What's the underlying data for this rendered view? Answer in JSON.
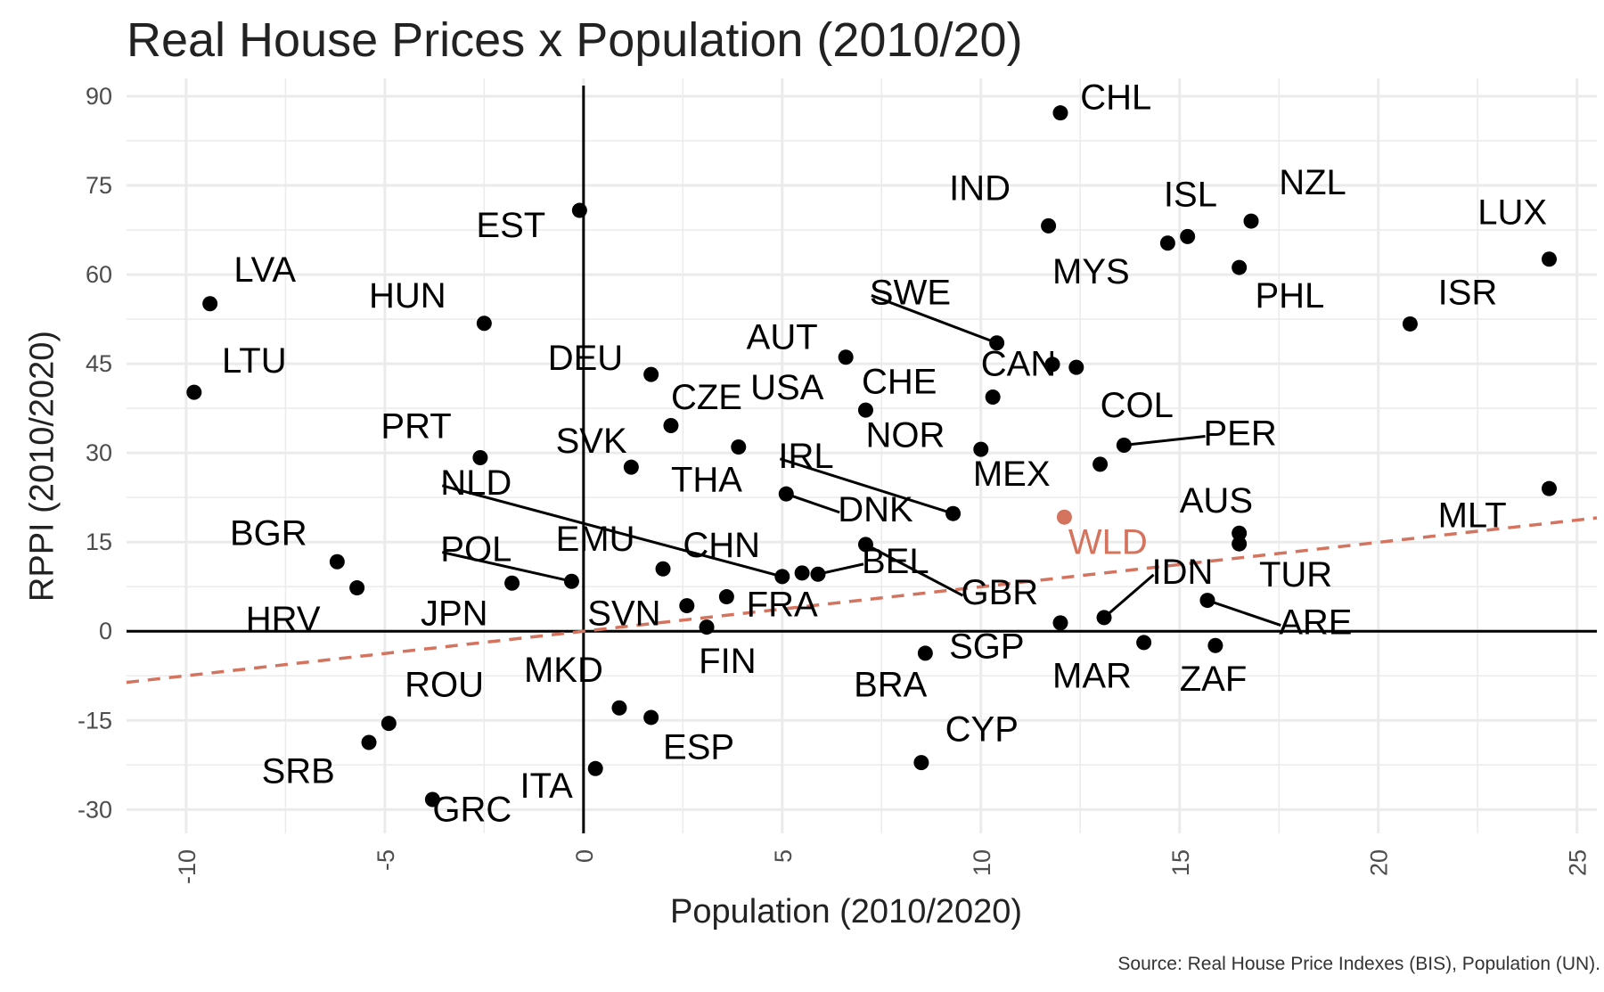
{
  "chart_data": {
    "type": "scatter",
    "title": "Real House Prices x Population (2010/20)",
    "xlabel": "Population (2010/2020)",
    "ylabel": "RPPI (2010/2020)",
    "source": "Source: Real House Price Indexes (BIS), Population (UN).",
    "xlim": [
      -11.5,
      25.5
    ],
    "ylim": [
      -34,
      93
    ],
    "x_ticks": [
      -10,
      -5,
      0,
      5,
      10,
      15,
      20,
      25
    ],
    "y_ticks": [
      -30,
      -15,
      0,
      15,
      30,
      45,
      60,
      75,
      90
    ],
    "x_tick_labels": [
      "-10",
      "-5",
      "0",
      "5",
      "10",
      "15",
      "20",
      "25"
    ],
    "y_tick_labels": [
      "-30",
      "-15",
      "0",
      "15",
      "30",
      "45",
      "60",
      "75",
      "90"
    ],
    "grid": true,
    "reference_lines": {
      "x": 0,
      "y": 0
    },
    "trend_line": {
      "style": "dashed",
      "color": "#d4735e",
      "slope": 0.748,
      "intercept": 0.0
    },
    "colors": {
      "points": "#000000",
      "highlight": "#d4735e",
      "grid": "#ebebeb"
    },
    "points": [
      {
        "label": "CHL",
        "x": 12.0,
        "y": 87.2
      },
      {
        "label": "IND",
        "x": 11.7,
        "y": 68.2
      },
      {
        "label": "ISL",
        "x": 15.2,
        "y": 66.4
      },
      {
        "label": "NZL",
        "x": 16.8,
        "y": 69.0
      },
      {
        "label": "MYS",
        "x": 14.7,
        "y": 65.3
      },
      {
        "label": "PHL",
        "x": 16.5,
        "y": 61.2
      },
      {
        "label": "LUX",
        "x": 24.3,
        "y": 62.6
      },
      {
        "label": "ISR",
        "x": 20.8,
        "y": 51.7
      },
      {
        "label": "EST",
        "x": -0.1,
        "y": 70.8
      },
      {
        "label": "LVA",
        "x": -9.4,
        "y": 55.1
      },
      {
        "label": "HUN",
        "x": -2.5,
        "y": 51.8
      },
      {
        "label": "LTU",
        "x": -9.8,
        "y": 40.2
      },
      {
        "label": "SWE",
        "x": 10.4,
        "y": 48.5
      },
      {
        "label": "CAN",
        "x": 11.8,
        "y": 44.9
      },
      {
        "label": "COL",
        "x": 12.4,
        "y": 44.4
      },
      {
        "label": "AUT",
        "x": 6.6,
        "y": 46.1
      },
      {
        "label": "DEU",
        "x": 1.7,
        "y": 43.2
      },
      {
        "label": "USA",
        "x": 3.9,
        "y": 31.0
      },
      {
        "label": "CZE",
        "x": 2.2,
        "y": 34.6
      },
      {
        "label": "CHE",
        "x": 7.1,
        "y": 37.2
      },
      {
        "label": "NOR",
        "x": 10.0,
        "y": 30.6
      },
      {
        "label": "PER",
        "x": 13.6,
        "y": 31.3
      },
      {
        "label": "MEX",
        "x": 13.0,
        "y": 28.1
      },
      {
        "label": "PRT",
        "x": -2.6,
        "y": 29.2
      },
      {
        "label": "SVK",
        "x": 1.2,
        "y": 27.6
      },
      {
        "label": "THA",
        "x": 10.3,
        "y": 39.4
      },
      {
        "label": "IRL",
        "x": 9.3,
        "y": 19.8
      },
      {
        "label": "DNK",
        "x": 5.1,
        "y": 23.1
      },
      {
        "label": "NLD",
        "x": 5.0,
        "y": 9.2
      },
      {
        "label": "AUS",
        "x": 16.5,
        "y": 16.5
      },
      {
        "label": "TUR",
        "x": 16.5,
        "y": 14.7
      },
      {
        "label": "MLT",
        "x": 24.3,
        "y": 24.0
      },
      {
        "label": "WLD",
        "x": 12.1,
        "y": 19.2,
        "highlight": true
      },
      {
        "label": "BGR",
        "x": -6.2,
        "y": 11.7
      },
      {
        "label": "HRV",
        "x": -5.7,
        "y": 7.3
      },
      {
        "label": "POL",
        "x": -0.3,
        "y": 8.4
      },
      {
        "label": "JPN",
        "x": -1.8,
        "y": 8.1
      },
      {
        "label": "EMU",
        "x": 2.0,
        "y": 10.5
      },
      {
        "label": "CHN",
        "x": 5.5,
        "y": 9.8
      },
      {
        "label": "BEL",
        "x": 5.9,
        "y": 9.6
      },
      {
        "label": "GBR",
        "x": 7.1,
        "y": 14.6
      },
      {
        "label": "IDN",
        "x": 13.1,
        "y": 2.3
      },
      {
        "label": "ARE",
        "x": 15.7,
        "y": 5.2
      },
      {
        "label": "SVN",
        "x": 2.6,
        "y": 4.3
      },
      {
        "label": "FRA",
        "x": 3.6,
        "y": 5.8
      },
      {
        "label": "FIN",
        "x": 3.1,
        "y": 0.7
      },
      {
        "label": "MAR",
        "x": 12.0,
        "y": 1.4
      },
      {
        "label": "ZAF",
        "x": 15.9,
        "y": -2.4
      },
      {
        "label": "SGP",
        "x": 8.6,
        "y": -3.7
      },
      {
        "label": "BRA",
        "x": 14.1,
        "y": -1.9
      },
      {
        "label": "MKD",
        "x": 0.9,
        "y": -12.9
      },
      {
        "label": "ESP",
        "x": 1.7,
        "y": -14.5
      },
      {
        "label": "ROU",
        "x": -4.9,
        "y": -15.5
      },
      {
        "label": "SRB",
        "x": -5.4,
        "y": -18.7
      },
      {
        "label": "CYP",
        "x": 8.5,
        "y": -22.1
      },
      {
        "label": "ITA",
        "x": 0.3,
        "y": -23.1
      },
      {
        "label": "GRC",
        "x": -3.8,
        "y": -28.3
      }
    ],
    "labels": [
      {
        "text": "CHL",
        "x": 12.5,
        "y": 87.8,
        "anchor": "start"
      },
      {
        "text": "IND",
        "x": 9.2,
        "y": 72.5,
        "anchor": "start"
      },
      {
        "text": "ISL",
        "x": 14.6,
        "y": 71.5,
        "anchor": "start"
      },
      {
        "text": "NZL",
        "x": 17.5,
        "y": 73.5,
        "anchor": "start"
      },
      {
        "text": "MYS",
        "x": 11.8,
        "y": 58.5,
        "anchor": "start"
      },
      {
        "text": "PHL",
        "x": 16.9,
        "y": 54.5,
        "anchor": "start"
      },
      {
        "text": "LUX",
        "x": 22.5,
        "y": 68.5,
        "anchor": "start"
      },
      {
        "text": "ISR",
        "x": 21.5,
        "y": 55.0,
        "anchor": "start"
      },
      {
        "text": "EST",
        "x": -2.7,
        "y": 66.3,
        "anchor": "start"
      },
      {
        "text": "LVA",
        "x": -8.8,
        "y": 58.8,
        "anchor": "start"
      },
      {
        "text": "HUN",
        "x": -5.4,
        "y": 54.5,
        "anchor": "start"
      },
      {
        "text": "LTU",
        "x": -9.1,
        "y": 43.5,
        "anchor": "start"
      },
      {
        "text": "SWE",
        "x": 7.2,
        "y": 55.0,
        "anchor": "start",
        "leader_to": {
          "x": 10.4,
          "y": 48.5
        }
      },
      {
        "text": "CAN",
        "x": 10.0,
        "y": 43.0,
        "anchor": "start"
      },
      {
        "text": "COL",
        "x": 13.0,
        "y": 36.0,
        "anchor": "start"
      },
      {
        "text": "AUT",
        "x": 4.1,
        "y": 47.5,
        "anchor": "start"
      },
      {
        "text": "DEU",
        "x": -0.9,
        "y": 44.0,
        "anchor": "start"
      },
      {
        "text": "USA",
        "x": 4.2,
        "y": 39.0,
        "anchor": "start"
      },
      {
        "text": "CZE",
        "x": 2.2,
        "y": 37.4,
        "anchor": "start"
      },
      {
        "text": "CHE",
        "x": 7.0,
        "y": 40.0,
        "anchor": "start"
      },
      {
        "text": "NOR",
        "x": 7.1,
        "y": 31.0,
        "anchor": "start"
      },
      {
        "text": "PER",
        "x": 15.6,
        "y": 31.3,
        "anchor": "start",
        "leader_to": {
          "x": 13.6,
          "y": 31.3
        }
      },
      {
        "text": "MEX",
        "x": 9.8,
        "y": 24.5,
        "anchor": "start"
      },
      {
        "text": "PRT",
        "x": -5.1,
        "y": 32.5,
        "anchor": "start"
      },
      {
        "text": "SVK",
        "x": -0.7,
        "y": 30.0,
        "anchor": "start"
      },
      {
        "text": "THA",
        "x": 2.2,
        "y": 23.5,
        "anchor": "start"
      },
      {
        "text": "IRL",
        "x": 4.9,
        "y": 27.5,
        "anchor": "start",
        "leader_to": {
          "x": 9.3,
          "y": 19.8
        }
      },
      {
        "text": "DNK",
        "x": 6.4,
        "y": 18.5,
        "anchor": "start",
        "leader_to": {
          "x": 5.1,
          "y": 23.1
        }
      },
      {
        "text": "NLD",
        "x": -3.6,
        "y": 23.0,
        "anchor": "start",
        "leader_to": {
          "x": 5.0,
          "y": 9.2
        }
      },
      {
        "text": "AUS",
        "x": 15.0,
        "y": 20.0,
        "anchor": "start"
      },
      {
        "text": "TUR",
        "x": 17.0,
        "y": 7.5,
        "anchor": "start"
      },
      {
        "text": "MLT",
        "x": 21.5,
        "y": 17.5,
        "anchor": "start"
      },
      {
        "text": "WLD",
        "x": 12.2,
        "y": 13.0,
        "anchor": "start",
        "highlight": true
      },
      {
        "text": "BGR",
        "x": -8.9,
        "y": 14.5,
        "anchor": "start"
      },
      {
        "text": "HRV",
        "x": -8.5,
        "y": 0.0,
        "anchor": "start"
      },
      {
        "text": "POL",
        "x": -3.6,
        "y": 11.8,
        "anchor": "start",
        "leader_to": {
          "x": -0.3,
          "y": 8.4
        }
      },
      {
        "text": "JPN",
        "x": -4.1,
        "y": 1.0,
        "anchor": "start"
      },
      {
        "text": "EMU",
        "x": -0.7,
        "y": 13.5,
        "anchor": "start"
      },
      {
        "text": "CHN",
        "x": 2.5,
        "y": 12.5,
        "anchor": "start"
      },
      {
        "text": "BEL",
        "x": 7.0,
        "y": 9.8,
        "anchor": "start",
        "leader_to": {
          "x": 5.9,
          "y": 9.6
        }
      },
      {
        "text": "GBR",
        "x": 9.5,
        "y": 4.5,
        "anchor": "start",
        "leader_to": {
          "x": 7.1,
          "y": 14.6
        }
      },
      {
        "text": "IDN",
        "x": 14.3,
        "y": 8.0,
        "anchor": "start",
        "leader_to": {
          "x": 13.1,
          "y": 2.3
        }
      },
      {
        "text": "ARE",
        "x": 17.5,
        "y": -0.5,
        "anchor": "start",
        "leader_to": {
          "x": 15.7,
          "y": 5.2
        }
      },
      {
        "text": "SVN",
        "x": 0.1,
        "y": 1.0,
        "anchor": "start"
      },
      {
        "text": "FRA",
        "x": 4.1,
        "y": 2.5,
        "anchor": "start"
      },
      {
        "text": "FIN",
        "x": 2.9,
        "y": -7.0,
        "anchor": "start"
      },
      {
        "text": "MAR",
        "x": 11.8,
        "y": -9.5,
        "anchor": "start"
      },
      {
        "text": "ZAF",
        "x": 15.0,
        "y": -10.0,
        "anchor": "start"
      },
      {
        "text": "SGP",
        "x": 9.2,
        "y": -4.5,
        "anchor": "start"
      },
      {
        "text": "BRA",
        "x": 6.8,
        "y": -11.0,
        "anchor": "start"
      },
      {
        "text": "MKD",
        "x": -1.5,
        "y": -8.5,
        "anchor": "start"
      },
      {
        "text": "ESP",
        "x": 2.0,
        "y": -21.5,
        "anchor": "start"
      },
      {
        "text": "ROU",
        "x": -4.5,
        "y": -11.0,
        "anchor": "start"
      },
      {
        "text": "SRB",
        "x": -8.1,
        "y": -25.5,
        "anchor": "start"
      },
      {
        "text": "CYP",
        "x": 9.1,
        "y": -18.5,
        "anchor": "start"
      },
      {
        "text": "ITA",
        "x": -1.6,
        "y": -28.0,
        "anchor": "start"
      },
      {
        "text": "GRC",
        "x": -3.8,
        "y": -32.0,
        "anchor": "start"
      }
    ]
  }
}
